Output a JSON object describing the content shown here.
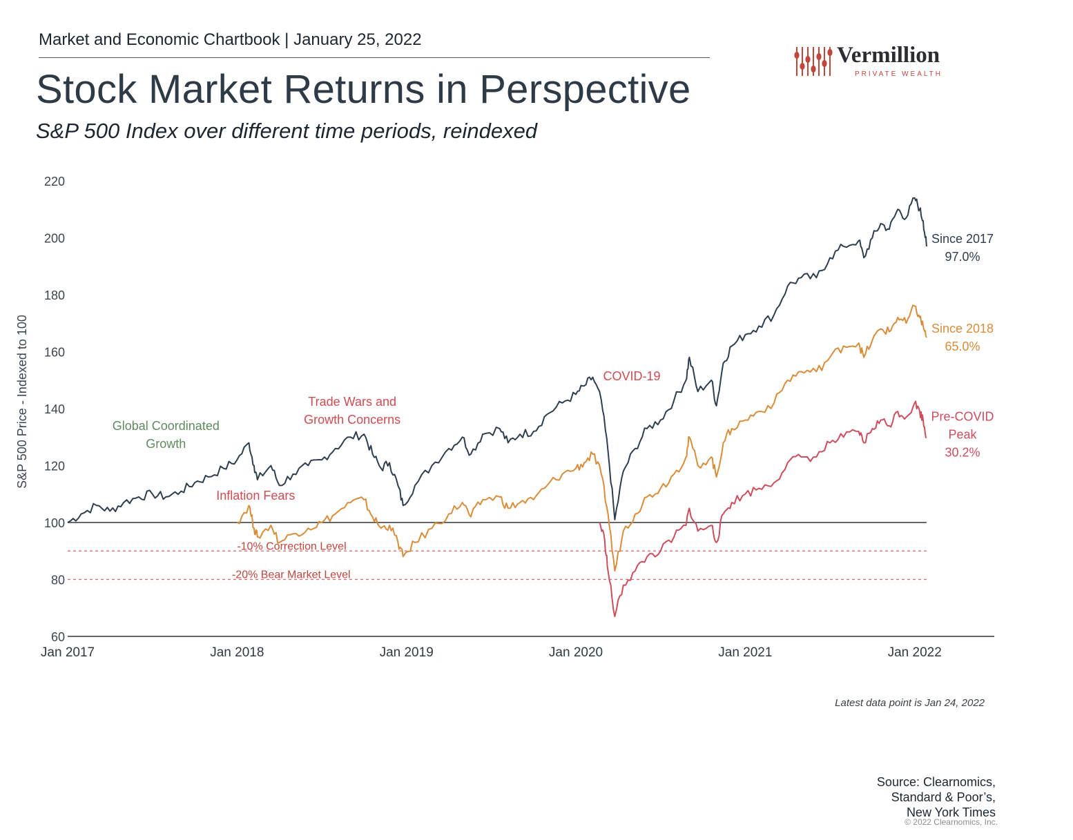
{
  "header": {
    "chartbook": "Market and Economic Chartbook | January 25, 2022",
    "title": "Stock Market Returns in Perspective",
    "subtitle": "S&P 500 Index over different time periods, reindexed"
  },
  "logo": {
    "name": "Vermillion",
    "sub": "PRIVATE WEALTH",
    "color": "#c0463c"
  },
  "footer": {
    "latest": "Latest data point is Jan 24, 2022",
    "source_lines": [
      "Source: Clearnomics,",
      "Standard & Poor’s,",
      "New York Times"
    ],
    "copyright": "© 2022 Clearnomics, Inc."
  },
  "chart_data": {
    "type": "line",
    "ylabel": "S&P 500 Price - Indexed to 100",
    "ylim": [
      60,
      220
    ],
    "yticks": [
      60,
      80,
      100,
      120,
      140,
      160,
      180,
      200,
      220
    ],
    "xlim": [
      2017.0,
      2022.47
    ],
    "xticks": [
      {
        "x": 2017.0,
        "label": "Jan 2017"
      },
      {
        "x": 2018.0,
        "label": "Jan 2018"
      },
      {
        "x": 2019.0,
        "label": "Jan 2019"
      },
      {
        "x": 2020.0,
        "label": "Jan 2020"
      },
      {
        "x": 2021.0,
        "label": "Jan 2021"
      },
      {
        "x": 2022.0,
        "label": "Jan 2022"
      }
    ],
    "reference_lines": [
      {
        "y": 100,
        "style": "solid",
        "color": "#333333",
        "x_start": 2017.0
      },
      {
        "y": 90,
        "style": "dashed",
        "color": "#e06666",
        "x_start": 2017.0,
        "label": "-10% Correction Level",
        "label_x": 2018.0
      },
      {
        "y": 80,
        "style": "dashed",
        "color": "#e06666",
        "x_start": 2017.0,
        "label": "-20% Bear Market Level",
        "label_x": 2017.97
      }
    ],
    "series": [
      {
        "name": "Since 2017",
        "color": "#2e3e4e",
        "end_label": [
          "Since 2017",
          "97.0%"
        ],
        "points": [
          [
            2017.0,
            100
          ],
          [
            2017.08,
            103
          ],
          [
            2017.17,
            106
          ],
          [
            2017.25,
            104
          ],
          [
            2017.33,
            107
          ],
          [
            2017.42,
            109
          ],
          [
            2017.5,
            110
          ],
          [
            2017.58,
            109
          ],
          [
            2017.67,
            111
          ],
          [
            2017.75,
            114
          ],
          [
            2017.83,
            116
          ],
          [
            2017.92,
            119
          ],
          [
            2018.0,
            122
          ],
          [
            2018.07,
            128
          ],
          [
            2018.1,
            120
          ],
          [
            2018.12,
            115
          ],
          [
            2018.2,
            120
          ],
          [
            2018.25,
            113
          ],
          [
            2018.33,
            117
          ],
          [
            2018.42,
            120
          ],
          [
            2018.5,
            122
          ],
          [
            2018.58,
            126
          ],
          [
            2018.67,
            130
          ],
          [
            2018.75,
            131
          ],
          [
            2018.8,
            124
          ],
          [
            2018.85,
            119
          ],
          [
            2018.9,
            121
          ],
          [
            2018.95,
            113
          ],
          [
            2018.98,
            106
          ],
          [
            2019.05,
            113
          ],
          [
            2019.15,
            120
          ],
          [
            2019.25,
            126
          ],
          [
            2019.33,
            130
          ],
          [
            2019.38,
            124
          ],
          [
            2019.45,
            131
          ],
          [
            2019.55,
            133
          ],
          [
            2019.6,
            128
          ],
          [
            2019.67,
            131
          ],
          [
            2019.75,
            132
          ],
          [
            2019.83,
            138
          ],
          [
            2019.92,
            142
          ],
          [
            2020.0,
            145
          ],
          [
            2020.05,
            148
          ],
          [
            2020.1,
            151
          ],
          [
            2020.15,
            143
          ],
          [
            2020.19,
            125
          ],
          [
            2020.23,
            101
          ],
          [
            2020.28,
            118
          ],
          [
            2020.35,
            126
          ],
          [
            2020.42,
            133
          ],
          [
            2020.5,
            136
          ],
          [
            2020.58,
            143
          ],
          [
            2020.65,
            150
          ],
          [
            2020.67,
            158
          ],
          [
            2020.72,
            146
          ],
          [
            2020.8,
            150
          ],
          [
            2020.83,
            141
          ],
          [
            2020.87,
            156
          ],
          [
            2020.92,
            162
          ],
          [
            2021.0,
            166
          ],
          [
            2021.08,
            169
          ],
          [
            2021.17,
            173
          ],
          [
            2021.25,
            183
          ],
          [
            2021.33,
            186
          ],
          [
            2021.42,
            186
          ],
          [
            2021.5,
            193
          ],
          [
            2021.58,
            197
          ],
          [
            2021.67,
            199
          ],
          [
            2021.7,
            193
          ],
          [
            2021.75,
            200
          ],
          [
            2021.8,
            205
          ],
          [
            2021.85,
            203
          ],
          [
            2021.9,
            210
          ],
          [
            2021.95,
            207
          ],
          [
            2022.0,
            214
          ],
          [
            2022.03,
            210
          ],
          [
            2022.05,
            206
          ],
          [
            2022.07,
            197
          ]
        ]
      },
      {
        "name": "Since 2018",
        "color": "#d98c3a",
        "end_label": [
          "Since 2018",
          "65.0%"
        ],
        "points": [
          [
            2018.0,
            100
          ],
          [
            2018.07,
            106
          ],
          [
            2018.1,
            98
          ],
          [
            2018.12,
            95
          ],
          [
            2018.2,
            99
          ],
          [
            2018.25,
            93
          ],
          [
            2018.33,
            96
          ],
          [
            2018.42,
            98
          ],
          [
            2018.5,
            100
          ],
          [
            2018.58,
            103
          ],
          [
            2018.67,
            107
          ],
          [
            2018.75,
            108
          ],
          [
            2018.8,
            102
          ],
          [
            2018.85,
            98
          ],
          [
            2018.9,
            99
          ],
          [
            2018.95,
            93
          ],
          [
            2018.98,
            88
          ],
          [
            2019.05,
            93
          ],
          [
            2019.15,
            98
          ],
          [
            2019.25,
            103
          ],
          [
            2019.33,
            107
          ],
          [
            2019.38,
            102
          ],
          [
            2019.45,
            108
          ],
          [
            2019.55,
            109
          ],
          [
            2019.6,
            105
          ],
          [
            2019.67,
            107
          ],
          [
            2019.75,
            108
          ],
          [
            2019.83,
            113
          ],
          [
            2019.92,
            117
          ],
          [
            2020.0,
            119
          ],
          [
            2020.05,
            121
          ],
          [
            2020.1,
            124
          ],
          [
            2020.15,
            117
          ],
          [
            2020.19,
            103
          ],
          [
            2020.23,
            83
          ],
          [
            2020.28,
            97
          ],
          [
            2020.35,
            103
          ],
          [
            2020.42,
            109
          ],
          [
            2020.5,
            112
          ],
          [
            2020.58,
            117
          ],
          [
            2020.65,
            123
          ],
          [
            2020.67,
            130
          ],
          [
            2020.72,
            120
          ],
          [
            2020.8,
            123
          ],
          [
            2020.83,
            116
          ],
          [
            2020.87,
            128
          ],
          [
            2020.92,
            133
          ],
          [
            2021.0,
            136
          ],
          [
            2021.08,
            139
          ],
          [
            2021.17,
            142
          ],
          [
            2021.25,
            150
          ],
          [
            2021.33,
            153
          ],
          [
            2021.42,
            153
          ],
          [
            2021.5,
            158
          ],
          [
            2021.58,
            162
          ],
          [
            2021.67,
            163
          ],
          [
            2021.7,
            158
          ],
          [
            2021.75,
            164
          ],
          [
            2021.8,
            168
          ],
          [
            2021.85,
            167
          ],
          [
            2021.9,
            172
          ],
          [
            2021.95,
            170
          ],
          [
            2022.0,
            176
          ],
          [
            2022.03,
            172
          ],
          [
            2022.05,
            169
          ],
          [
            2022.07,
            165
          ]
        ]
      },
      {
        "name": "Pre-COVID Peak",
        "color": "#cc4d5c",
        "end_label": [
          "Pre-COVID",
          "Peak",
          "30.2%"
        ],
        "points": [
          [
            2020.14,
            100
          ],
          [
            2020.17,
            94
          ],
          [
            2020.19,
            83
          ],
          [
            2020.23,
            67
          ],
          [
            2020.28,
            78
          ],
          [
            2020.35,
            83
          ],
          [
            2020.42,
            88
          ],
          [
            2020.5,
            90
          ],
          [
            2020.58,
            95
          ],
          [
            2020.65,
            99
          ],
          [
            2020.67,
            105
          ],
          [
            2020.72,
            97
          ],
          [
            2020.8,
            99
          ],
          [
            2020.83,
            93
          ],
          [
            2020.87,
            103
          ],
          [
            2020.92,
            107
          ],
          [
            2021.0,
            110
          ],
          [
            2021.08,
            112
          ],
          [
            2021.17,
            114
          ],
          [
            2021.25,
            121
          ],
          [
            2021.33,
            123
          ],
          [
            2021.42,
            123
          ],
          [
            2021.5,
            128
          ],
          [
            2021.58,
            130
          ],
          [
            2021.67,
            132
          ],
          [
            2021.7,
            128
          ],
          [
            2021.75,
            133
          ],
          [
            2021.8,
            136
          ],
          [
            2021.85,
            134
          ],
          [
            2021.9,
            139
          ],
          [
            2021.95,
            137
          ],
          [
            2022.0,
            142
          ],
          [
            2022.03,
            139
          ],
          [
            2022.05,
            136
          ],
          [
            2022.07,
            130
          ]
        ]
      }
    ],
    "annotations": [
      {
        "lines": [
          "Global Coordinated",
          "Growth"
        ],
        "color": "#5f8a5f",
        "x": 2017.58,
        "y": 132.5
      },
      {
        "lines": [
          "Trade Wars and",
          "Growth Concerns"
        ],
        "color": "#d14b52",
        "x": 2018.68,
        "y": 141
      },
      {
        "lines": [
          "Inflation Fears"
        ],
        "color": "#d14b52",
        "x": 2018.11,
        "y": 108
      },
      {
        "lines": [
          "COVID-19"
        ],
        "color": "#d14b52",
        "x": 2020.33,
        "y": 150
      }
    ]
  }
}
